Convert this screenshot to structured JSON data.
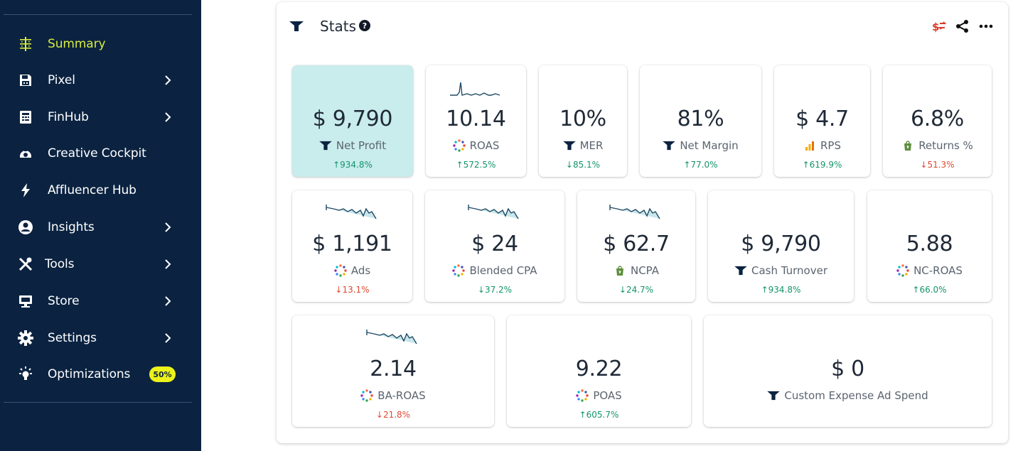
{
  "sidebar": {
    "items": [
      {
        "label": "Summary",
        "icon": "summary-grid-icon",
        "active": true,
        "has_chevron": false
      },
      {
        "label": "Pixel",
        "icon": "save-disk-icon",
        "active": false,
        "has_chevron": true
      },
      {
        "label": "FinHub",
        "icon": "ledger-icon",
        "active": false,
        "has_chevron": true
      },
      {
        "label": "Creative Cockpit",
        "icon": "cockpit-icon",
        "active": false,
        "has_chevron": false
      },
      {
        "label": "Affluencer Hub",
        "icon": "lightning-icon",
        "active": false,
        "has_chevron": false
      },
      {
        "label": "Insights",
        "icon": "user-circle-icon",
        "active": false,
        "has_chevron": true
      },
      {
        "label": "Tools",
        "icon": "tools-icon",
        "active": false,
        "has_chevron": true
      },
      {
        "label": "Store",
        "icon": "store-icon",
        "active": false,
        "has_chevron": true
      },
      {
        "label": "Settings",
        "icon": "gear-icon",
        "active": false,
        "has_chevron": true
      },
      {
        "label": "Optimizations",
        "icon": "lightbulb-icon",
        "active": false,
        "has_chevron": false,
        "badge": "50%"
      }
    ],
    "colors": {
      "background": "#0b2341",
      "active": "#d8ec3c",
      "badge": "#ecf21a"
    }
  },
  "stats": {
    "title": "Stats",
    "help": "?",
    "cards": [
      {
        "value": "$ 9,790",
        "label": "Net Profit",
        "icon": "triple-whale-icon",
        "change": "↑934.8%",
        "direction": "up",
        "highlight": true
      },
      {
        "value": "10.14",
        "label": "ROAS",
        "icon": "multi-dot-icon",
        "change": "↑572.5%",
        "direction": "up",
        "sparkline": "pulse"
      },
      {
        "value": "10%",
        "label": "MER",
        "icon": "triple-whale-icon",
        "change": "↓85.1%",
        "direction": "down-good"
      },
      {
        "value": "81%",
        "label": "Net Margin",
        "icon": "triple-whale-icon",
        "change": "↑77.0%",
        "direction": "up"
      },
      {
        "value": "$ 4.7",
        "label": "RPS",
        "icon": "bar-chart-icon",
        "change": "↑619.9%",
        "direction": "up"
      },
      {
        "value": "6.8%",
        "label": "Returns %",
        "icon": "shopify-bag-icon",
        "change": "↓51.3%",
        "direction": "down"
      },
      {
        "value": "$ 1,191",
        "label": "Ads",
        "icon": "multi-dot-icon",
        "change": "↓13.1%",
        "direction": "down",
        "sparkline": "area"
      },
      {
        "value": "$ 24",
        "label": "Blended CPA",
        "icon": "multi-dot-icon",
        "change": "↓37.2%",
        "direction": "down-good",
        "sparkline": "area"
      },
      {
        "value": "$ 62.7",
        "label": "NCPA",
        "icon": "shopify-bag-icon",
        "change": "↓24.7%",
        "direction": "down-good",
        "sparkline": "area"
      },
      {
        "value": "$ 9,790",
        "label": "Cash Turnover",
        "icon": "triple-whale-icon",
        "change": "↑934.8%",
        "direction": "up"
      },
      {
        "value": "5.88",
        "label": "NC-ROAS",
        "icon": "multi-dot-icon",
        "change": "↑66.0%",
        "direction": "up"
      },
      {
        "value": "2.14",
        "label": "BA-ROAS",
        "icon": "multi-dot-icon",
        "change": "↓21.8%",
        "direction": "down",
        "sparkline": "area"
      },
      {
        "value": "9.22",
        "label": "POAS",
        "icon": "multi-dot-icon",
        "change": "↑605.7%",
        "direction": "up"
      },
      {
        "value": "$ 0",
        "label": "Custom Expense Ad Spend",
        "icon": "triple-whale-icon",
        "change": "",
        "direction": "none"
      }
    ],
    "colors": {
      "up": "#14946a",
      "down": "#e0492f",
      "highlight": "#c9ecec",
      "sparkline": "#1e4a66"
    }
  },
  "toolbar": {
    "compare_icon": "currency-swap-icon",
    "share_icon": "share-icon",
    "more_icon": "more-horizontal-icon"
  }
}
